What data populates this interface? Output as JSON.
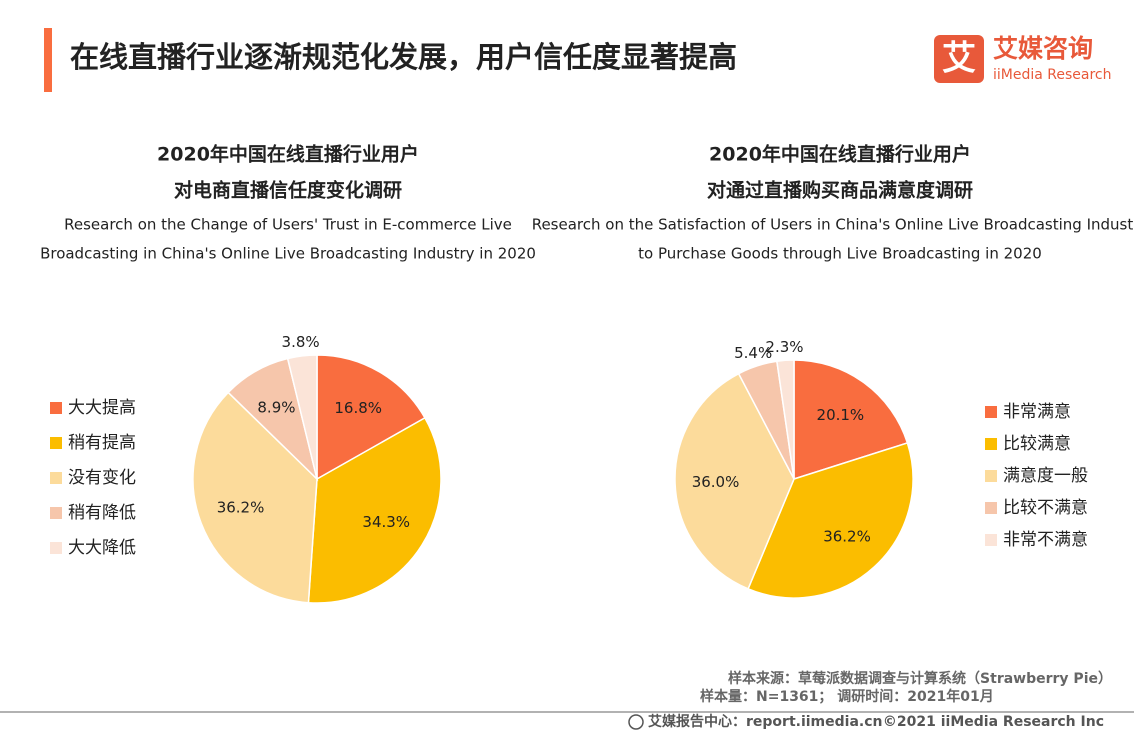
{
  "header": {
    "title": "在线直播行业逐渐规范化发展，用户信任度显著提高",
    "logo_cn": "艾媒咨询",
    "logo_en": "iiMedia Research",
    "logo_icon": "艾"
  },
  "chart_data": [
    {
      "type": "pie",
      "title": [
        "2020年中国在线直播行业用户",
        "对电商直播信任度变化调研"
      ],
      "subtitle": [
        "Research on the Change of Users' Trust in E-commerce Live",
        "Broadcasting in China's Online Live Broadcasting Industry in 2020"
      ],
      "categories": [
        "大大提高",
        "稍有提高",
        "没有变化",
        "稍有降低",
        "大大降低"
      ],
      "values": [
        16.8,
        34.3,
        36.2,
        8.9,
        3.8
      ],
      "value_labels": [
        "16.8%",
        "34.3%",
        "36.2%",
        "8.9%",
        "3.8%"
      ],
      "colors": [
        "#f96d3f",
        "#fbbd00",
        "#fcdb9b",
        "#f6c6ab",
        "#fbe4d8"
      ],
      "legend": "left"
    },
    {
      "type": "pie",
      "title": [
        "2020年中国在线直播行业用户",
        "对通过直播购买商品满意度调研"
      ],
      "subtitle": [
        "Research on the Satisfaction of Users in China's Online Live Broadcasting Industry",
        "to Purchase Goods through Live Broadcasting in 2020"
      ],
      "categories": [
        "非常满意",
        "比较满意",
        "满意度一般",
        "比较不满意",
        "非常不满意"
      ],
      "values": [
        20.1,
        36.2,
        36.0,
        5.4,
        2.3
      ],
      "value_labels": [
        "20.1%",
        "36.2%",
        "36.0%",
        "5.4%",
        "2.3%"
      ],
      "colors": [
        "#f96d3f",
        "#fbbd00",
        "#fcdb9b",
        "#f6c6ab",
        "#fbe4d8"
      ],
      "legend": "right"
    }
  ],
  "footer": {
    "source": "样本来源：草莓派数据调查与计算系统（Strawberry Pie）",
    "sample": "样本量：N=1361； 调研时间：2021年01月",
    "site": "艾媒报告中心：report.iimedia.cn",
    "copyright": "©2021  iiMedia Research  Inc"
  }
}
